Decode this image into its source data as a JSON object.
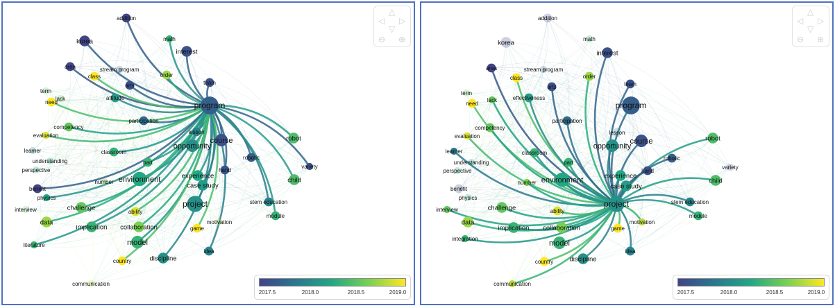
{
  "colorbar": {
    "ticks": [
      "2017.5",
      "2018.0",
      "2018.5",
      "2019.0"
    ],
    "colors": [
      "#414487",
      "#2a788e",
      "#22a884",
      "#7ad151",
      "#fde725"
    ]
  },
  "nav_icons": [
    "arrow-up-icon",
    "arrow-left-icon",
    "arrow-right-icon",
    "arrow-down-icon",
    "zoom-out-icon",
    "zoom-in-icon"
  ],
  "left_panel": {
    "focus": "program",
    "nodes": [
      {
        "label": "addition",
        "year": 2017.4,
        "weight": 3
      },
      {
        "label": "math",
        "year": 2018.3,
        "weight": 2
      },
      {
        "label": "korea",
        "year": 2017.4,
        "weight": 4
      },
      {
        "label": "interest",
        "year": 2017.5,
        "weight": 4
      },
      {
        "label": "area",
        "year": 2017.3,
        "weight": 3
      },
      {
        "label": "class",
        "year": 2019.0,
        "weight": 3
      },
      {
        "label": "stream program",
        "year": 2017.6,
        "weight": 2,
        "faded": true
      },
      {
        "label": "order",
        "year": 2018.7,
        "weight": 3
      },
      {
        "label": "arts",
        "year": 2017.5,
        "weight": 3
      },
      {
        "label": "team",
        "year": 2017.5,
        "weight": 3
      },
      {
        "label": "attitude",
        "year": 2018.1,
        "weight": 3
      },
      {
        "label": "term",
        "year": 2018.5,
        "weight": 2,
        "faded": true
      },
      {
        "label": "lack",
        "year": 2018.5,
        "weight": 2,
        "faded": true
      },
      {
        "label": "need",
        "year": 2019.0,
        "weight": 3
      },
      {
        "label": "program",
        "year": 2017.6,
        "weight": 8
      },
      {
        "label": "participation",
        "year": 2017.7,
        "weight": 3
      },
      {
        "label": "competency",
        "year": 2018.5,
        "weight": 3
      },
      {
        "label": "evaluation",
        "year": 2018.9,
        "weight": 2
      },
      {
        "label": "lesson",
        "year": 2017.9,
        "weight": 3
      },
      {
        "label": "robot",
        "year": 2018.4,
        "weight": 4
      },
      {
        "label": "course",
        "year": 2017.5,
        "weight": 5
      },
      {
        "label": "opportunity",
        "year": 2018.0,
        "weight": 5
      },
      {
        "label": "learner",
        "year": 2017.8,
        "weight": 2,
        "faded": true
      },
      {
        "label": "classroom",
        "year": 2018.3,
        "weight": 3
      },
      {
        "label": "robotic",
        "year": 2017.6,
        "weight": 3
      },
      {
        "label": "understanding",
        "year": 2018.2,
        "weight": 2,
        "faded": true
      },
      {
        "label": "perspective",
        "year": 2018.2,
        "weight": 2,
        "faded": true
      },
      {
        "label": "part",
        "year": 2018.3,
        "weight": 3
      },
      {
        "label": "variety",
        "year": 2017.5,
        "weight": 2
      },
      {
        "label": "experience",
        "year": 2018.2,
        "weight": 4
      },
      {
        "label": "hand",
        "year": 2017.5,
        "weight": 3
      },
      {
        "label": "environment",
        "year": 2018.2,
        "weight": 6
      },
      {
        "label": "number",
        "year": 2018.6,
        "weight": 2,
        "faded": true
      },
      {
        "label": "case study",
        "year": 2018.1,
        "weight": 4
      },
      {
        "label": "child",
        "year": 2018.4,
        "weight": 4
      },
      {
        "label": "benefit",
        "year": 2017.4,
        "weight": 3
      },
      {
        "label": "physics",
        "year": 2018.2,
        "weight": 2
      },
      {
        "label": "challenge",
        "year": 2018.5,
        "weight": 4
      },
      {
        "label": "project",
        "year": 2018.0,
        "weight": 7
      },
      {
        "label": "interview",
        "year": 2018.5,
        "weight": 2,
        "faded": true
      },
      {
        "label": "ability",
        "year": 2018.9,
        "weight": 3
      },
      {
        "label": "stem education",
        "year": 2017.9,
        "weight": 3
      },
      {
        "label": "module",
        "year": 2018.3,
        "weight": 3
      },
      {
        "label": "data",
        "year": 2018.7,
        "weight": 4
      },
      {
        "label": "implication",
        "year": 2018.3,
        "weight": 4
      },
      {
        "label": "collaboration",
        "year": 2018.6,
        "weight": 4
      },
      {
        "label": "motivation",
        "year": 2018.8,
        "weight": 2,
        "faded": true
      },
      {
        "label": "game",
        "year": 2019.0,
        "weight": 3
      },
      {
        "label": "model",
        "year": 2018.3,
        "weight": 5
      },
      {
        "label": "idea",
        "year": 2017.9,
        "weight": 3
      },
      {
        "label": "literature",
        "year": 2018.3,
        "weight": 2
      },
      {
        "label": "discipline",
        "year": 2018.0,
        "weight": 4
      },
      {
        "label": "country",
        "year": 2019.0,
        "weight": 3
      },
      {
        "label": "communication",
        "year": 2018.8,
        "weight": 2,
        "faded": true
      }
    ]
  },
  "right_panel": {
    "focus": "project",
    "nodes": [
      {
        "label": "addition",
        "year": 2017.4,
        "weight": 3,
        "faded": true
      },
      {
        "label": "math",
        "year": 2018.3,
        "weight": 2,
        "faded": true
      },
      {
        "label": "korea",
        "year": 2017.4,
        "weight": 4,
        "faded": true
      },
      {
        "label": "interest",
        "year": 2017.5,
        "weight": 4
      },
      {
        "label": "area",
        "year": 2017.3,
        "weight": 3
      },
      {
        "label": "class",
        "year": 2019.0,
        "weight": 3
      },
      {
        "label": "stream program",
        "year": 2017.6,
        "weight": 2,
        "faded": true
      },
      {
        "label": "order",
        "year": 2018.7,
        "weight": 3
      },
      {
        "label": "arts",
        "year": 2017.5,
        "weight": 3
      },
      {
        "label": "team",
        "year": 2017.5,
        "weight": 3
      },
      {
        "label": "effectiveness",
        "year": 2018.1,
        "weight": 3
      },
      {
        "label": "term",
        "year": 2018.5,
        "weight": 2,
        "faded": true
      },
      {
        "label": "lack",
        "year": 2018.5,
        "weight": 2
      },
      {
        "label": "need",
        "year": 2019.0,
        "weight": 3
      },
      {
        "label": "program",
        "year": 2017.6,
        "weight": 8
      },
      {
        "label": "participation",
        "year": 2017.7,
        "weight": 3
      },
      {
        "label": "competency",
        "year": 2018.5,
        "weight": 3
      },
      {
        "label": "evaluation",
        "year": 2018.9,
        "weight": 2
      },
      {
        "label": "lesson",
        "year": 2017.9,
        "weight": 3,
        "faded": true
      },
      {
        "label": "robot",
        "year": 2018.4,
        "weight": 4
      },
      {
        "label": "course",
        "year": 2017.5,
        "weight": 5
      },
      {
        "label": "opportunity",
        "year": 2018.0,
        "weight": 5
      },
      {
        "label": "learner",
        "year": 2017.8,
        "weight": 2
      },
      {
        "label": "classroom",
        "year": 2018.3,
        "weight": 3
      },
      {
        "label": "robotic",
        "year": 2017.6,
        "weight": 3
      },
      {
        "label": "understanding",
        "year": 2018.2,
        "weight": 2,
        "faded": true
      },
      {
        "label": "perspective",
        "year": 2018.2,
        "weight": 2,
        "faded": true
      },
      {
        "label": "part",
        "year": 2018.3,
        "weight": 3
      },
      {
        "label": "variety",
        "year": 2017.5,
        "weight": 2,
        "faded": true
      },
      {
        "label": "experience",
        "year": 2018.2,
        "weight": 4
      },
      {
        "label": "hand",
        "year": 2017.5,
        "weight": 3
      },
      {
        "label": "environment",
        "year": 2018.2,
        "weight": 6
      },
      {
        "label": "number",
        "year": 2018.6,
        "weight": 2
      },
      {
        "label": "case study",
        "year": 2018.1,
        "weight": 4
      },
      {
        "label": "child",
        "year": 2018.4,
        "weight": 4
      },
      {
        "label": "benefit",
        "year": 2017.4,
        "weight": 3,
        "faded": true
      },
      {
        "label": "physics",
        "year": 2018.2,
        "weight": 2,
        "faded": true
      },
      {
        "label": "challenge",
        "year": 2018.5,
        "weight": 4
      },
      {
        "label": "project",
        "year": 2018.0,
        "weight": 7
      },
      {
        "label": "interview",
        "year": 2018.5,
        "weight": 2
      },
      {
        "label": "ability",
        "year": 2018.9,
        "weight": 3
      },
      {
        "label": "stem education",
        "year": 2017.9,
        "weight": 3
      },
      {
        "label": "module",
        "year": 2018.3,
        "weight": 3
      },
      {
        "label": "data",
        "year": 2018.7,
        "weight": 4
      },
      {
        "label": "implication",
        "year": 2018.3,
        "weight": 4
      },
      {
        "label": "collaboration",
        "year": 2018.6,
        "weight": 4
      },
      {
        "label": "motivation",
        "year": 2018.8,
        "weight": 2
      },
      {
        "label": "game",
        "year": 2019.0,
        "weight": 3
      },
      {
        "label": "model",
        "year": 2018.3,
        "weight": 5
      },
      {
        "label": "idea",
        "year": 2017.9,
        "weight": 3
      },
      {
        "label": "integration",
        "year": 2018.3,
        "weight": 2
      },
      {
        "label": "discipline",
        "year": 2018.0,
        "weight": 4
      },
      {
        "label": "country",
        "year": 2019.0,
        "weight": 3
      },
      {
        "label": "communication",
        "year": 2018.8,
        "weight": 2
      }
    ]
  }
}
